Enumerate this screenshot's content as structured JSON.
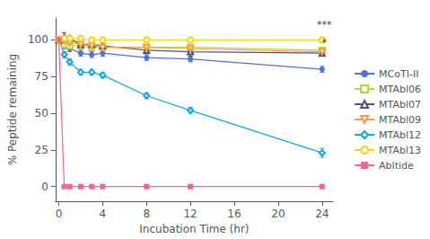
{
  "chart_data": {
    "type": "line",
    "xlabel": "Incubation Time (hr)",
    "ylabel": "% Peptide remaining",
    "xlim": [
      -0.3,
      25
    ],
    "ylim": [
      -10,
      115
    ],
    "xticks": [
      0,
      4,
      8,
      12,
      16,
      20,
      24
    ],
    "yticks": [
      0,
      25,
      50,
      75,
      100
    ],
    "grid": false,
    "legend": "right",
    "x": [
      0,
      0.5,
      1,
      2,
      3,
      4,
      8,
      12,
      24
    ],
    "series": [
      {
        "name": "MCoTI-II",
        "marker": "circle",
        "values": [
          100,
          96,
          94,
          91,
          90,
          91,
          88,
          87,
          80
        ],
        "yerr": [
          0,
          2,
          2,
          2,
          2,
          2,
          2,
          2,
          2
        ]
      },
      {
        "name": "MTAbl06",
        "marker": "square-open",
        "values": [
          100,
          97,
          96,
          96,
          95,
          95,
          95,
          95,
          93
        ],
        "yerr": [
          0,
          1,
          1,
          1,
          1,
          1,
          1,
          1,
          2
        ]
      },
      {
        "name": "MTAbl07",
        "marker": "triangle-open",
        "values": [
          100,
          102,
          101,
          97,
          97,
          96,
          93,
          92,
          91
        ],
        "yerr": [
          0,
          3,
          2,
          2,
          2,
          2,
          2,
          3,
          2
        ]
      },
      {
        "name": "MTAbl09",
        "marker": "triangle-down-open",
        "values": [
          100,
          99,
          98,
          97,
          96,
          95,
          95,
          94,
          92
        ],
        "yerr": [
          0,
          1,
          1,
          1,
          1,
          1,
          1,
          1,
          2
        ]
      },
      {
        "name": "MTAbl12",
        "marker": "diamond-open",
        "values": [
          100,
          90,
          85,
          78,
          78,
          76,
          62,
          52,
          23
        ],
        "yerr": [
          0,
          2,
          2,
          2,
          2,
          2,
          2,
          2,
          3
        ]
      },
      {
        "name": "MTAbl13",
        "marker": "circle-open",
        "values": [
          100,
          101,
          101,
          101,
          100,
          100,
          100,
          100,
          100
        ],
        "yerr": [
          0,
          2,
          2,
          2,
          2,
          2,
          2,
          2,
          2
        ]
      },
      {
        "name": "Abltide",
        "marker": "square",
        "values": [
          100,
          0,
          0,
          0,
          0,
          0,
          0,
          0,
          0
        ],
        "yerr": [
          0,
          0,
          0,
          0,
          0,
          0,
          0,
          0,
          0
        ]
      }
    ],
    "annotations": [
      {
        "x": 24.2,
        "y": 107,
        "text": "***"
      },
      {
        "x": 24.2,
        "y": 95,
        "text": "*"
      }
    ]
  }
}
